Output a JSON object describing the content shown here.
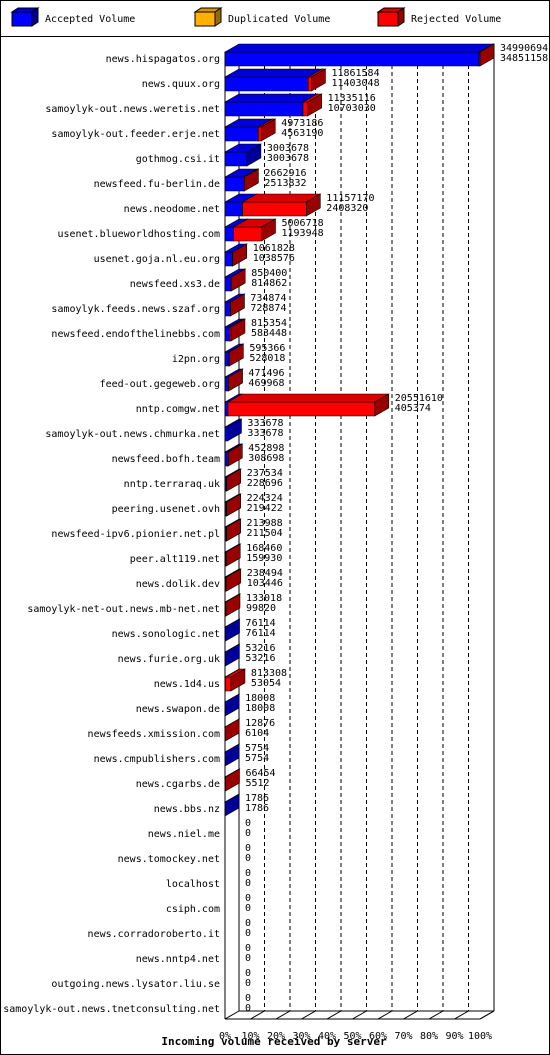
{
  "chart_data": {
    "type": "bar3d-stacked-horizontal",
    "x_label": "Incoming volume received by server",
    "categories": [
      "news.hispagatos.org",
      "news.quux.org",
      "samoylyk-out.news.weretis.net",
      "samoylyk-out.feeder.erje.net",
      "gothmog.csi.it",
      "newsfeed.fu-berlin.de",
      "news.neodome.net",
      "usenet.blueworldhosting.com",
      "usenet.goja.nl.eu.org",
      "newsfeed.xs3.de",
      "samoylyk.feeds.news.szaf.org",
      "newsfeed.endofthelinebbs.com",
      "i2pn.org",
      "feed-out.gegeweb.org",
      "nntp.comgw.net",
      "samoylyk-out.news.chmurka.net",
      "newsfeed.bofh.team",
      "nntp.terraraq.uk",
      "peering.usenet.ovh",
      "newsfeed-ipv6.pionier.net.pl",
      "peer.alt119.net",
      "news.dolik.dev",
      "samoylyk-net-out.news.mb-net.net",
      "news.sonologic.net",
      "news.furie.org.uk",
      "news.1d4.us",
      "news.swapon.de",
      "newsfeeds.xmission.com",
      "news.cmpublishers.com",
      "news.cgarbs.de",
      "news.bbs.nz",
      "news.niel.me",
      "news.tomockey.net",
      "localhost",
      "csiph.com",
      "news.corradoroberto.it",
      "news.nntp4.net",
      "outgoing.news.lysator.liu.se",
      "samoylyk-out.news.tnetconsulting.net"
    ],
    "totals": [
      34990694,
      11861584,
      11335116,
      4973186,
      3003678,
      2662916,
      11157170,
      5006718,
      1061828,
      850400,
      734874,
      815354,
      595366,
      471496,
      20551610,
      333678,
      452898,
      237534,
      224324,
      213988,
      168460,
      238494,
      133018,
      76114,
      53216,
      813308,
      18008,
      12876,
      5754,
      66454,
      1786,
      0,
      0,
      0,
      0,
      0,
      0,
      0,
      0
    ],
    "series": [
      {
        "name": "Accepted Volume",
        "color": "#0000ff",
        "values": [
          34851158,
          11403048,
          10703030,
          4563190,
          3003678,
          2513832,
          2408320,
          1193948,
          1038576,
          814862,
          728874,
          583448,
          528018,
          469968,
          405374,
          333678,
          308698,
          228696,
          219422,
          211504,
          159930,
          103446,
          99820,
          76114,
          53216,
          53054,
          18008,
          6104,
          5754,
          5512,
          1786,
          0,
          0,
          0,
          0,
          0,
          0,
          0,
          0
        ]
      },
      {
        "name": "Duplicated Volume",
        "color": "#ffb000",
        "values": [
          0,
          0,
          0,
          0,
          0,
          0,
          0,
          0,
          0,
          0,
          0,
          0,
          0,
          0,
          0,
          0,
          0,
          0,
          0,
          0,
          0,
          0,
          0,
          0,
          0,
          0,
          0,
          0,
          0,
          0,
          0,
          0,
          0,
          0,
          0,
          0,
          0,
          0,
          0
        ]
      },
      {
        "name": "Rejected Volume",
        "color": "#ff0000",
        "values": [
          139536,
          458536,
          632086,
          409996,
          0,
          149084,
          8748850,
          3812770,
          23252,
          35538,
          6000,
          231906,
          67348,
          1528,
          20146236,
          0,
          144200,
          8838,
          4902,
          2484,
          8530,
          135048,
          33198,
          0,
          0,
          760254,
          0,
          6772,
          0,
          60942,
          0,
          0,
          0,
          0,
          0,
          0,
          0,
          0,
          0
        ]
      }
    ],
    "xlim": [
      0,
      100
    ],
    "xticks": [
      {
        "value": 0,
        "label": "0%"
      },
      {
        "value": 10,
        "label": "10%"
      },
      {
        "value": 20,
        "label": "20%"
      },
      {
        "value": 30,
        "label": "30%"
      },
      {
        "value": 40,
        "label": "40%"
      },
      {
        "value": 50,
        "label": "50%"
      },
      {
        "value": 60,
        "label": "60%"
      },
      {
        "value": 70,
        "label": "70%"
      },
      {
        "value": 80,
        "label": "80%"
      },
      {
        "value": 90,
        "label": "90%"
      },
      {
        "value": 100,
        "label": "100%"
      }
    ],
    "grid": true
  }
}
